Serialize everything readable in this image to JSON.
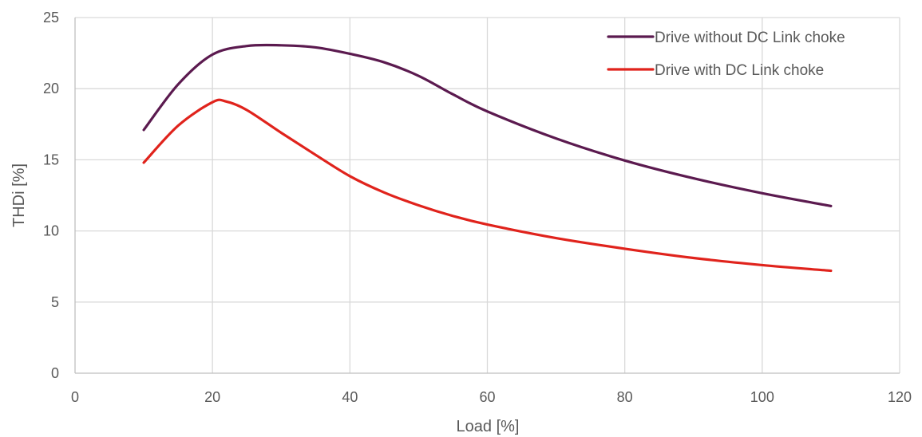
{
  "chart_data": {
    "type": "line",
    "title": "",
    "xlabel": "Load [%]",
    "ylabel": "THDi [%]",
    "xlim": [
      0,
      120
    ],
    "ylim": [
      0,
      25
    ],
    "xticks": [
      0,
      20,
      40,
      60,
      80,
      100,
      120
    ],
    "yticks": [
      0,
      5,
      10,
      15,
      20,
      25
    ],
    "grid": "vertical and horizontal",
    "legend_position": "top-right",
    "series": [
      {
        "name": "Drive without DC Link choke",
        "color": "#5b1a4f",
        "x": [
          10,
          15,
          20,
          25,
          30,
          35,
          40,
          45,
          50,
          55,
          60,
          70,
          80,
          90,
          100,
          110
        ],
        "values": [
          17.1,
          20.3,
          22.4,
          23.0,
          23.05,
          22.9,
          22.45,
          21.85,
          20.9,
          19.6,
          18.4,
          16.5,
          14.95,
          13.7,
          12.65,
          11.75
        ]
      },
      {
        "name": "Drive with DC Link choke",
        "color": "#e0231c",
        "x": [
          10,
          15,
          20,
          22,
          25,
          30,
          35,
          40,
          45,
          50,
          55,
          60,
          70,
          80,
          90,
          100,
          110
        ],
        "values": [
          14.8,
          17.4,
          19.05,
          19.1,
          18.5,
          16.9,
          15.35,
          13.85,
          12.7,
          11.8,
          11.05,
          10.45,
          9.5,
          8.75,
          8.1,
          7.6,
          7.2
        ]
      }
    ]
  }
}
